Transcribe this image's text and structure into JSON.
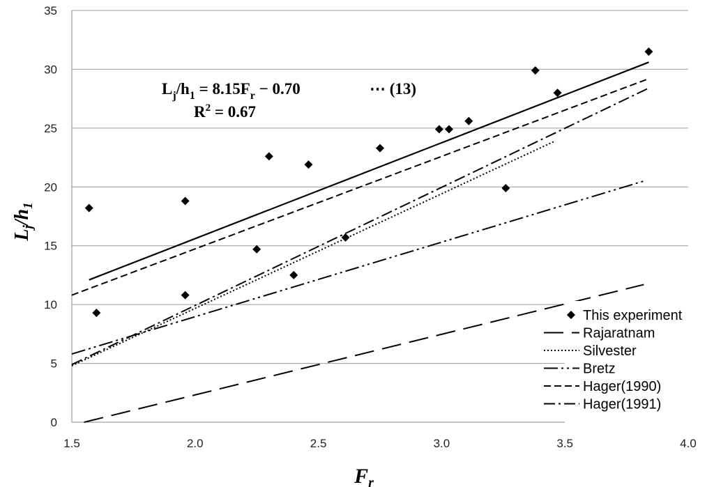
{
  "chart_data": {
    "type": "scatter",
    "xlabel_main": "F",
    "xlabel_sub": "r",
    "ylabel_parts": [
      "L",
      "j",
      "/h",
      "1"
    ],
    "xlim": [
      1.5,
      4.0
    ],
    "ylim": [
      0,
      35
    ],
    "x_ticks": [
      "1.5",
      "2.0",
      "2.5",
      "3.0",
      "3.5",
      "4.0"
    ],
    "y_ticks": [
      "0",
      "5",
      "10",
      "15",
      "20",
      "25",
      "30",
      "35"
    ],
    "grid": "horizontal",
    "legend_position": "right",
    "equation": {
      "lhs": "L",
      "lhs_sub": "j",
      "slash": "/h",
      "slash_sub": "1",
      "rhs": " = 8.15F",
      "rhs_sub": "r",
      "tail": " − 0.70",
      "ref": "⋯  (13)",
      "r2_base": "R",
      "r2_sup": "2",
      "r2_value": " = 0.67"
    },
    "series": [
      {
        "name": "This experiment",
        "kind": "points",
        "x": [
          1.57,
          1.6,
          1.96,
          1.96,
          2.25,
          2.3,
          2.4,
          2.46,
          2.61,
          2.75,
          2.99,
          3.03,
          3.11,
          3.26,
          3.38,
          3.47,
          3.84
        ],
        "y": [
          18.2,
          9.3,
          18.8,
          10.8,
          14.7,
          22.6,
          12.5,
          21.9,
          15.7,
          23.3,
          24.9,
          24.9,
          25.6,
          19.9,
          29.9,
          28.0,
          31.5
        ]
      },
      {
        "name": "This experiment fit",
        "kind": "line",
        "dash": "",
        "x": [
          1.57,
          3.84
        ],
        "y": [
          12.1,
          30.6
        ]
      },
      {
        "name": "Rajaratnam",
        "kind": "line",
        "dash": "28 12",
        "x": [
          1.55,
          3.82
        ],
        "y": [
          0,
          11.7
        ]
      },
      {
        "name": "Silvester",
        "kind": "line",
        "dash": "2 3",
        "x": [
          1.5,
          3.46
        ],
        "y": [
          4.8,
          23.9
        ]
      },
      {
        "name": "Bretz",
        "kind": "line",
        "dash": "20 5 3 5 3 5",
        "x": [
          1.5,
          3.82
        ],
        "y": [
          5.8,
          20.5
        ]
      },
      {
        "name": "Hager(1990)",
        "kind": "line",
        "dash": "10 5",
        "x": [
          1.5,
          3.84
        ],
        "y": [
          10.8,
          29.2
        ]
      },
      {
        "name": "Hager(1991)",
        "kind": "line",
        "dash": "16 5 3 5",
        "x": [
          1.5,
          3.84
        ],
        "y": [
          4.9,
          28.4
        ]
      }
    ]
  }
}
